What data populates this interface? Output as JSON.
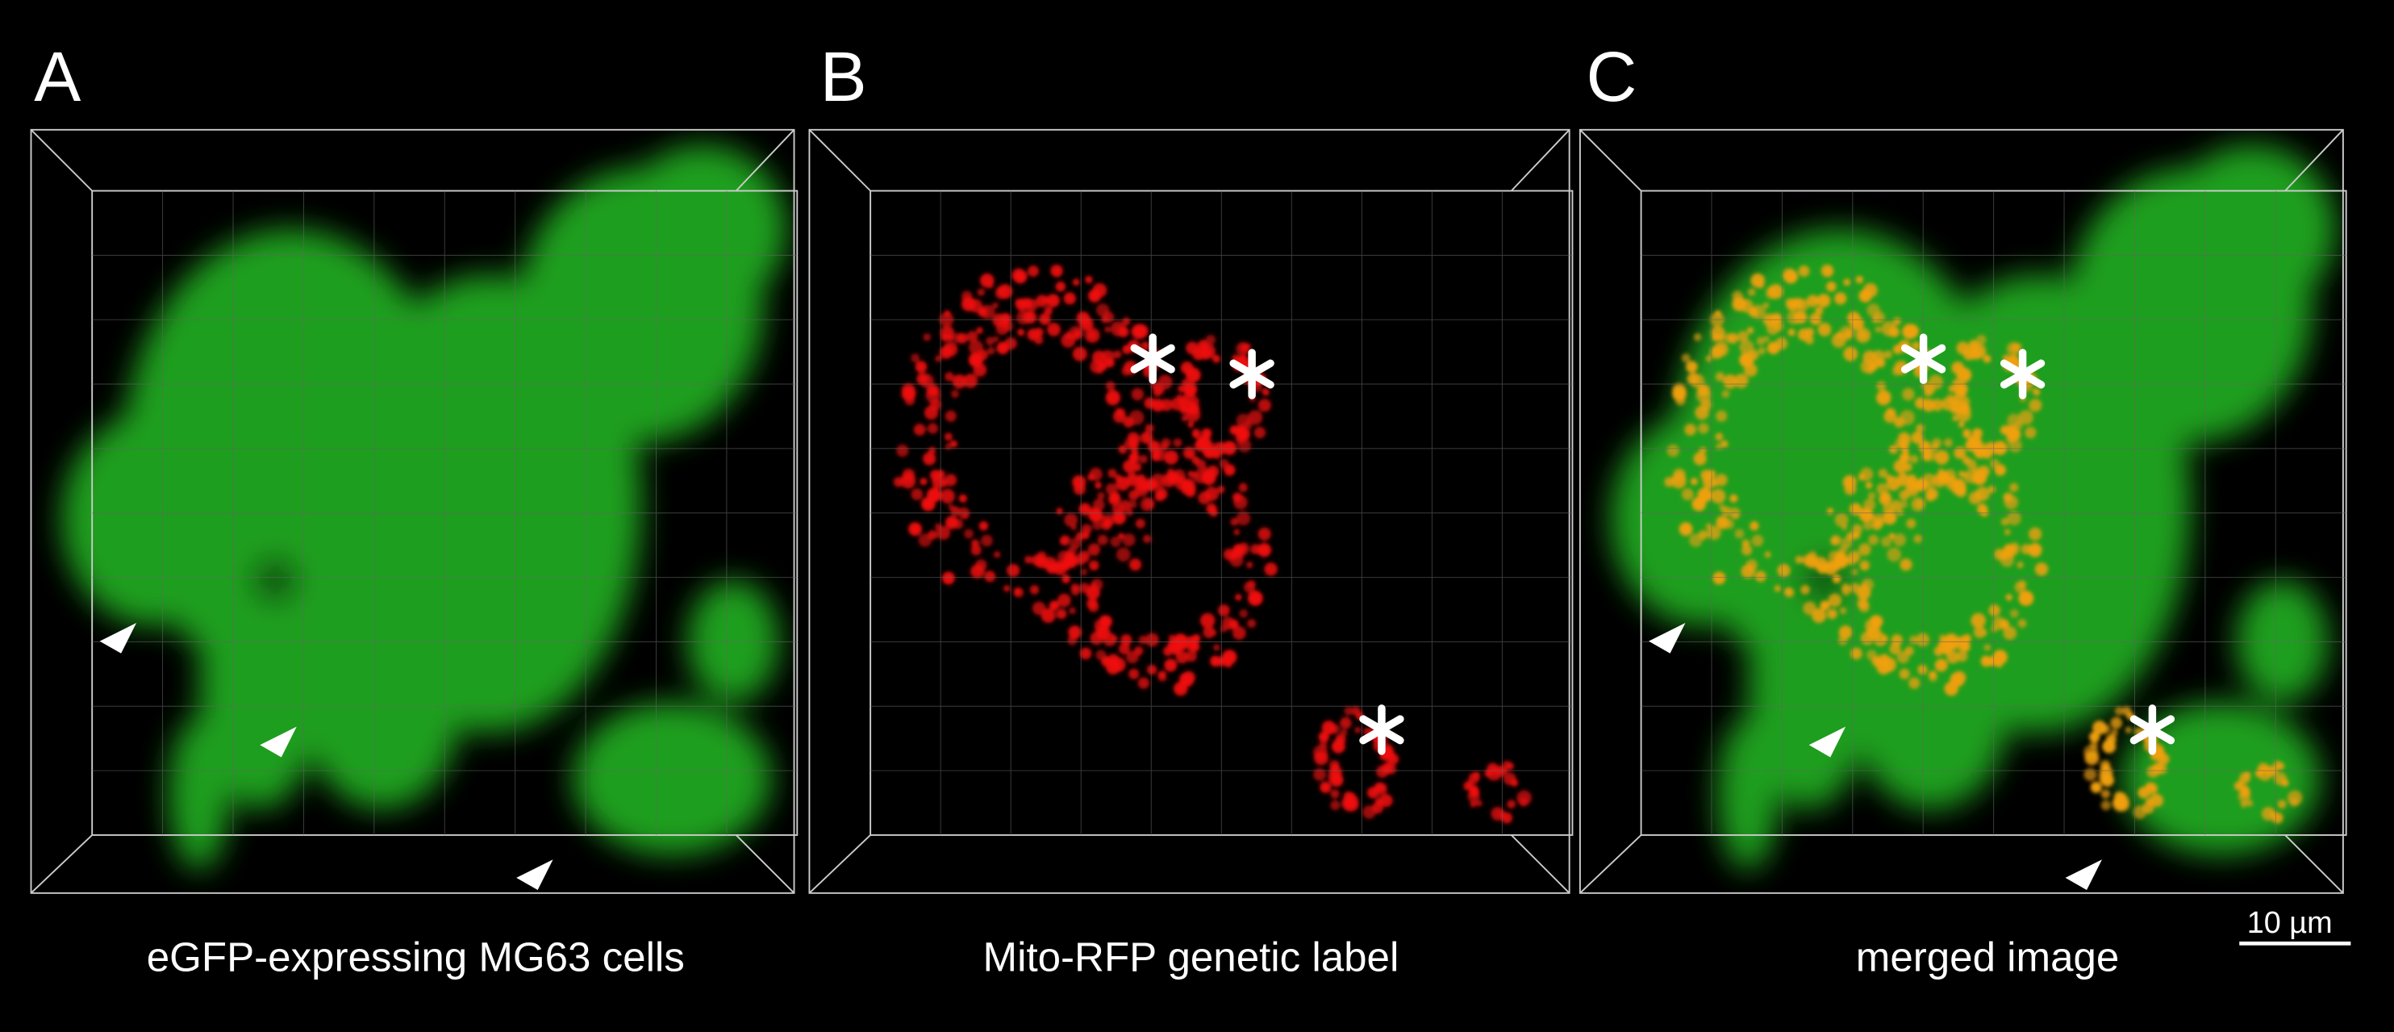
{
  "panels": [
    {
      "label": "A",
      "caption": "eGFP-expressing MG63 cells"
    },
    {
      "label": "B",
      "caption": "Mito-RFP genetic label"
    },
    {
      "label": "C",
      "caption": "merged image"
    }
  ],
  "scale_bar": {
    "label": "10 µm"
  }
}
